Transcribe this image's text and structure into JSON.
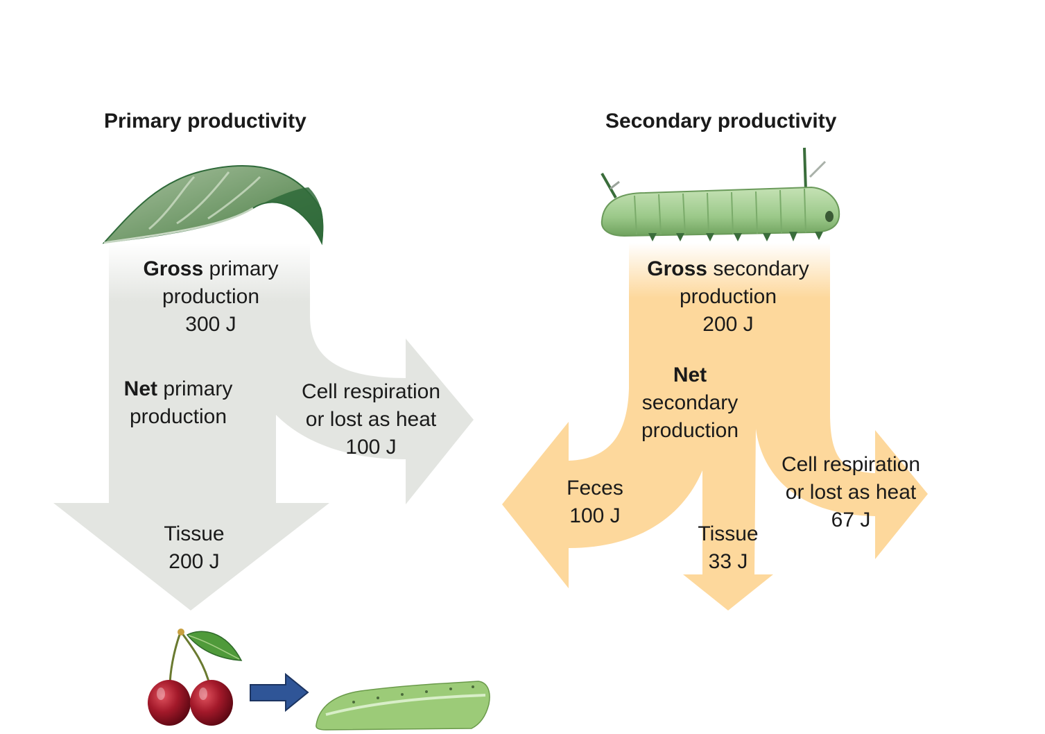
{
  "primary": {
    "title": "Primary productivity",
    "gross_bold": "Gross",
    "gross_rest": " primary",
    "gross_line2": "production",
    "gross_value": "300 J",
    "net_bold": "Net",
    "net_rest": " primary",
    "net_line2": "production",
    "resp_line1": "Cell respiration",
    "resp_line2": "or lost as heat",
    "resp_value": "100 J",
    "tissue_label": "Tissue",
    "tissue_value": "200 J",
    "color": "#e3e5e1"
  },
  "secondary": {
    "title": "Secondary productivity",
    "gross_bold": "Gross",
    "gross_rest": " secondary",
    "gross_line2": "production",
    "gross_value": "200 J",
    "net_bold": "Net",
    "net_line2": "secondary",
    "net_line3": "production",
    "feces_label": "Feces",
    "feces_value": "100 J",
    "tissue_label": "Tissue",
    "tissue_value": "33 J",
    "resp_line1": "Cell respiration",
    "resp_line2": "or lost as heat",
    "resp_value": "67 J",
    "color": "#fdd89c"
  },
  "icons": {
    "leaf": "leaf-icon",
    "caterpillar": "caterpillar-icon",
    "cherries": "cherries-icon",
    "arrow": "blue-arrow-icon",
    "caterpillar_small": "caterpillar-small-icon"
  },
  "colors": {
    "leaf": "#5e8a5a",
    "caterpillar": "#9cc98a",
    "cherry": "#a3192a",
    "arrow_blue": "#2f5597"
  }
}
